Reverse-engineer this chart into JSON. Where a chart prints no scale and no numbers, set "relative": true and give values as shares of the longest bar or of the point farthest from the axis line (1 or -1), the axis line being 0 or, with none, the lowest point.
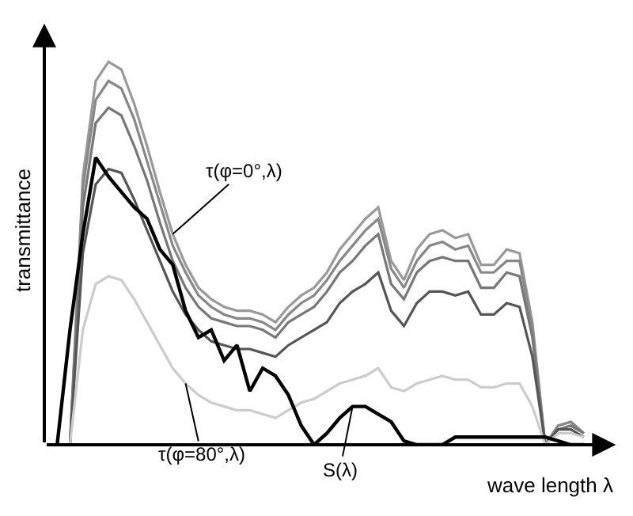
{
  "chart_data": {
    "type": "line",
    "relative": true,
    "xlabel": "wave length λ",
    "ylabel": "transmittance",
    "legend": false,
    "marker": "none",
    "line_style": "solid",
    "categories": [
      null,
      null,
      null,
      null,
      null,
      null,
      null,
      null,
      null,
      null,
      null,
      null,
      null,
      null,
      null,
      null,
      null,
      null,
      null,
      null,
      null,
      null,
      null,
      null,
      null,
      null,
      null,
      null,
      null,
      null,
      null,
      null,
      null,
      null,
      null,
      null,
      null,
      null,
      null,
      null,
      null,
      null
    ],
    "series": [
      {
        "name": "τ(φ=0°,λ)",
        "color": "#999999",
        "values": [
          null,
          0,
          0.7,
          0.95,
          1.0,
          0.98,
          0.89,
          0.78,
          0.66,
          0.55,
          0.47,
          0.41,
          0.38,
          0.36,
          0.35,
          0.35,
          0.34,
          0.32,
          0.36,
          0.39,
          0.41,
          0.45,
          0.51,
          0.55,
          0.59,
          0.62,
          0.48,
          0.43,
          0.51,
          0.55,
          0.56,
          0.54,
          0.55,
          0.47,
          0.47,
          0.51,
          0.5,
          0.32,
          0,
          0.05,
          0.06,
          0.03
        ]
      },
      {
        "color": "#888888",
        "values": [
          null,
          0,
          0.67,
          0.9,
          0.95,
          0.93,
          0.85,
          0.74,
          0.63,
          0.52,
          0.45,
          0.39,
          0.36,
          0.34,
          0.33,
          0.33,
          0.32,
          0.3,
          0.34,
          0.37,
          0.39,
          0.43,
          0.48,
          0.52,
          0.56,
          0.59,
          0.46,
          0.41,
          0.48,
          0.52,
          0.53,
          0.51,
          0.52,
          0.45,
          0.45,
          0.48,
          0.48,
          0.3,
          0,
          0.05,
          0.06,
          0.03
        ]
      },
      {
        "color": "#777777",
        "values": [
          null,
          0,
          0.62,
          0.84,
          0.88,
          0.86,
          0.78,
          0.69,
          0.58,
          0.48,
          0.41,
          0.36,
          0.33,
          0.32,
          0.31,
          0.31,
          0.3,
          0.28,
          0.32,
          0.34,
          0.36,
          0.4,
          0.45,
          0.48,
          0.52,
          0.55,
          0.42,
          0.38,
          0.45,
          0.48,
          0.49,
          0.48,
          0.48,
          0.41,
          0.41,
          0.45,
          0.44,
          0.28,
          0,
          0.04,
          0.05,
          0.03
        ]
      },
      {
        "color": "#555555",
        "values": [
          null,
          0,
          0.5,
          0.68,
          0.72,
          0.71,
          0.64,
          0.56,
          0.48,
          0.4,
          0.34,
          0.3,
          0.27,
          0.26,
          0.25,
          0.25,
          0.24,
          0.23,
          0.26,
          0.28,
          0.3,
          0.32,
          0.37,
          0.4,
          0.42,
          0.45,
          0.35,
          0.31,
          0.37,
          0.4,
          0.4,
          0.39,
          0.4,
          0.34,
          0.34,
          0.37,
          0.36,
          0.23,
          0,
          0.04,
          0.04,
          0.02
        ]
      },
      {
        "name": "τ(φ=80°,λ)",
        "color": "#cccccc",
        "values": [
          null,
          0,
          0.3,
          0.42,
          0.44,
          0.43,
          0.38,
          0.32,
          0.26,
          0.2,
          0.16,
          0.13,
          0.11,
          0.1,
          0.09,
          0.09,
          0.08,
          0.07,
          0.09,
          0.11,
          0.12,
          0.14,
          0.16,
          0.17,
          0.18,
          0.2,
          0.15,
          0.14,
          0.16,
          0.17,
          0.18,
          0.17,
          0.17,
          0.15,
          0.15,
          0.16,
          0.16,
          0.1,
          0,
          0.03,
          0.03,
          0.02
        ]
      },
      {
        "name": "S(λ)",
        "color": "#000000",
        "values": [
          0,
          0.3,
          0.55,
          0.75,
          0.7,
          0.66,
          0.62,
          0.59,
          0.51,
          0.47,
          0.35,
          0.28,
          0.3,
          0.22,
          0.26,
          0.14,
          0.2,
          0.18,
          0.13,
          0.05,
          0,
          0.03,
          0.07,
          0.1,
          0.1,
          0.08,
          0.06,
          0.01,
          0,
          0,
          0,
          0.02,
          0.02,
          0.02,
          0.02,
          0.02,
          0.02,
          0.02,
          0.02,
          0.01,
          0,
          0
        ]
      }
    ]
  }
}
